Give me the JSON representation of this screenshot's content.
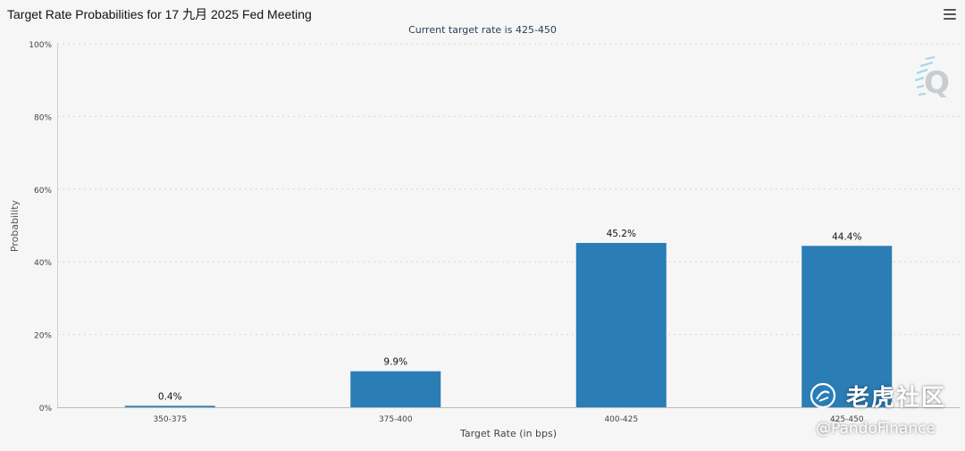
{
  "title": "Target Rate Probabilities for 17 九月 2025 Fed Meeting",
  "subtitle": "Current target rate is 425-450",
  "icons": {
    "menu": "hamburger-menu-icon",
    "logo": "q-logo-icon"
  },
  "watermark": {
    "brand": "老虎社区",
    "handle": "@PandoFinance"
  },
  "colors": {
    "bar": "#2a7db5",
    "grid": "#d6d6d6",
    "axis_text": "#444444"
  },
  "chart_data": {
    "type": "bar",
    "categories": [
      "350-375",
      "375-400",
      "400-425",
      "425-450"
    ],
    "values": [
      0.4,
      9.9,
      45.2,
      44.4
    ],
    "data_labels": [
      "0.4%",
      "9.9%",
      "45.2%",
      "44.4%"
    ],
    "xlabel": "Target Rate (in bps)",
    "ylabel": "Probability",
    "ylim": [
      0,
      100
    ],
    "yticks": [
      0,
      20,
      40,
      60,
      80,
      100
    ],
    "ytick_labels": [
      "0%",
      "20%",
      "40%",
      "60%",
      "80%",
      "100%"
    ],
    "grid": true
  }
}
